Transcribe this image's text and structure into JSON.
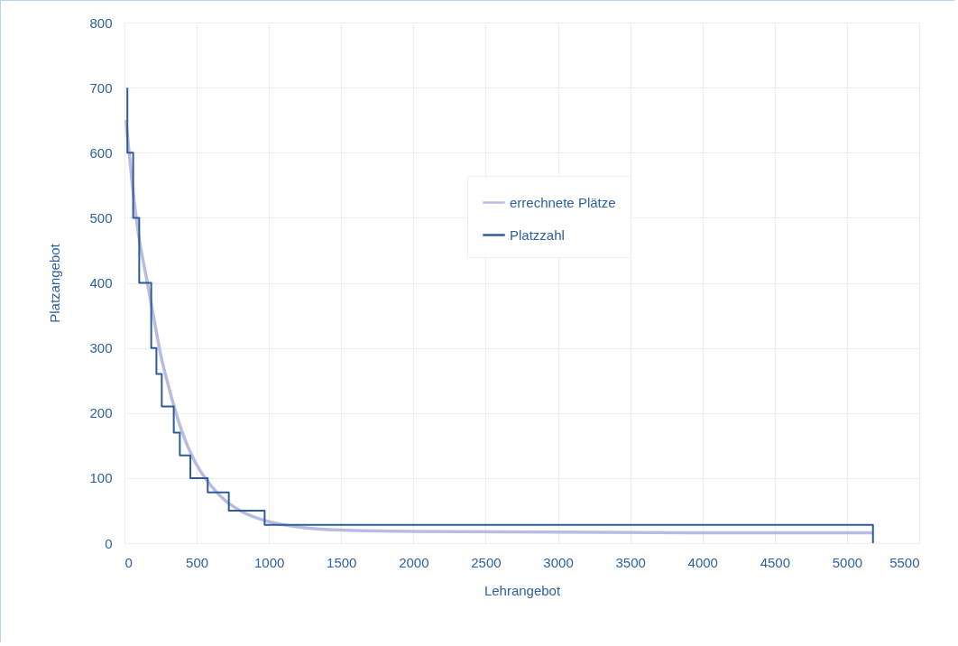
{
  "chart_data": {
    "type": "line",
    "xlabel": "Lehrangebot",
    "ylabel": "Platzangebot",
    "xlim": [
      0,
      5500
    ],
    "ylim": [
      0,
      800
    ],
    "xticks": [
      0,
      500,
      1000,
      1500,
      2000,
      2500,
      3000,
      3500,
      4000,
      4500,
      5000,
      5500
    ],
    "yticks": [
      0,
      100,
      200,
      300,
      400,
      500,
      600,
      700,
      800
    ],
    "grid": true,
    "legend": "top right",
    "series": [
      {
        "name": "errechnete Plätze",
        "color": "#b8bce0",
        "x": [
          10,
          50,
          100,
          150,
          200,
          250,
          300,
          400,
          500,
          600,
          700,
          800,
          1000,
          1200,
          1500,
          2000,
          3000,
          4000,
          5180
        ],
        "values": [
          650,
          560,
          470,
          410,
          350,
          290,
          245,
          170,
          120,
          88,
          65,
          50,
          33,
          25,
          20,
          18,
          17,
          16,
          16
        ]
      },
      {
        "name": "Platzzahl",
        "type": "step",
        "color": "#2e5c9a",
        "x": [
          20,
          20,
          60,
          102,
          185,
          221,
          258,
          341,
          383,
          456,
          576,
          722,
          970,
          5180
        ],
        "values": [
          700,
          600,
          500,
          400,
          300,
          260,
          210,
          170,
          135,
          100,
          78,
          50,
          28,
          0
        ]
      }
    ]
  }
}
